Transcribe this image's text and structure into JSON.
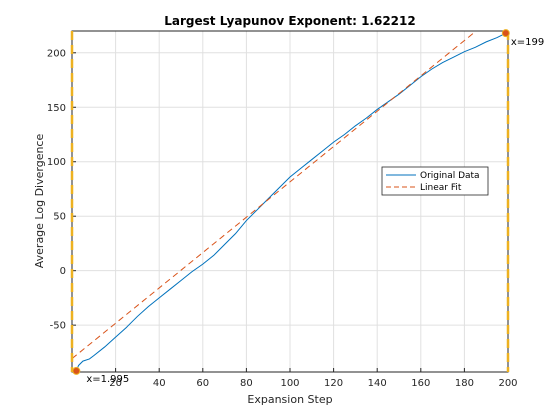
{
  "chart_data": {
    "type": "line",
    "title": "Largest Lyapunov Exponent: 1.62212",
    "xlabel": "Expansion Step",
    "ylabel": "Average Log Divergence",
    "xlim": [
      0,
      200
    ],
    "ylim": [
      -93,
      220
    ],
    "xticks": [
      20,
      40,
      60,
      80,
      100,
      120,
      140,
      160,
      180,
      200
    ],
    "yticks": [
      -50,
      0,
      50,
      100,
      150,
      200
    ],
    "grid": true,
    "legend_position": "right",
    "series": [
      {
        "name": "Original Data",
        "color": "#0072bd",
        "style": "solid",
        "x": [
          1.995,
          3,
          5,
          8,
          10,
          15,
          20,
          25,
          30,
          35,
          40,
          45,
          50,
          55,
          60,
          65,
          70,
          75,
          80,
          85,
          90,
          95,
          100,
          105,
          110,
          115,
          120,
          125,
          130,
          135,
          140,
          145,
          150,
          155,
          160,
          165,
          170,
          175,
          180,
          185,
          190,
          195,
          199
        ],
        "y": [
          -92,
          -87,
          -83,
          -81,
          -78,
          -70,
          -61,
          -52,
          -42,
          -33,
          -25,
          -17,
          -9,
          -1,
          6,
          14,
          24,
          34,
          46,
          56,
          66,
          76,
          86,
          94,
          102,
          110,
          118,
          125,
          133,
          140,
          148,
          155,
          162,
          170,
          178,
          185,
          191,
          196,
          201,
          205,
          210,
          214,
          218
        ]
      },
      {
        "name": "Linear Fit",
        "color": "#d95319",
        "style": "dashed",
        "x": [
          0,
          200
        ],
        "y": [
          -80.7,
          243.7
        ]
      }
    ],
    "annotations": [
      {
        "label": "x=1.995",
        "x": 1.995,
        "y": -92
      },
      {
        "label": "x=199",
        "x": 199,
        "y": 218
      }
    ],
    "cursor_lines": [
      {
        "x": 0,
        "color": "#edb120"
      },
      {
        "x": 200,
        "color": "#edb120"
      }
    ]
  }
}
